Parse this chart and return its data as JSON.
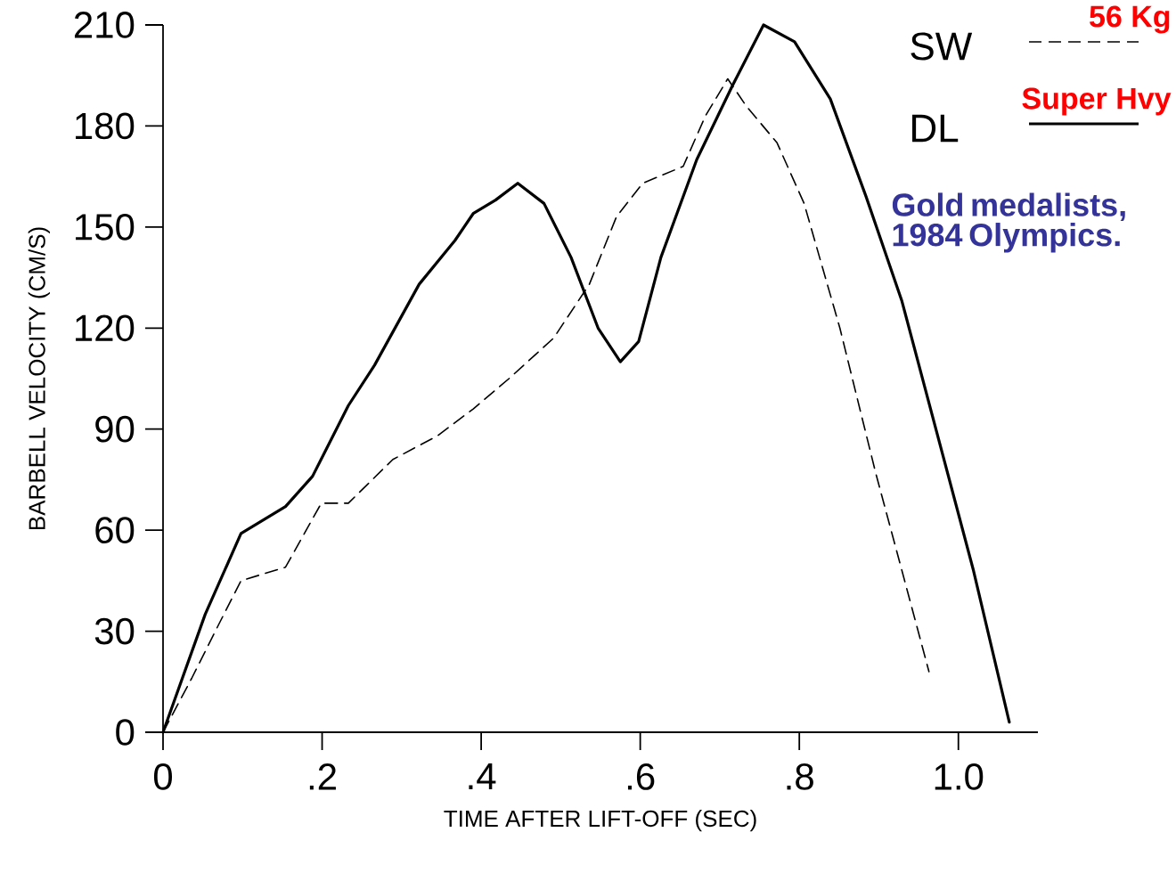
{
  "chart_data": {
    "type": "line",
    "xlabel": "TIME AFTER LIFT-OFF (SEC)",
    "ylabel": "BARBELL VELOCITY (CM/S)",
    "xlim": [
      0,
      1.1
    ],
    "ylim": [
      0,
      210
    ],
    "xticks": [
      0,
      {
        "value": 0.2,
        "label": ".2"
      },
      {
        "value": 0.4,
        "label": ".4"
      },
      {
        "value": 0.6,
        "label": ".6"
      },
      {
        "value": 0.8,
        "label": ".8"
      },
      {
        "value": 1.0,
        "label": "1.0"
      }
    ],
    "yticks": [
      0,
      30,
      60,
      90,
      120,
      150,
      180,
      210
    ],
    "legend": "top right",
    "grid": false,
    "marker": "none",
    "series": [
      {
        "name": "SW",
        "color": "#000000",
        "line_style": "dashed",
        "x": [
          0,
          0.036,
          0.07,
          0.098,
          0.154,
          0.199,
          0.233,
          0.289,
          0.345,
          0.39,
          0.435,
          0.491,
          0.536,
          0.57,
          0.603,
          0.654,
          0.682,
          0.71,
          0.733,
          0.772,
          0.806,
          0.851,
          0.896,
          0.929,
          0.963
        ],
        "values": [
          0,
          16,
          32,
          45,
          49,
          68,
          68,
          81,
          88,
          96,
          105,
          117,
          133,
          153,
          163,
          168,
          183,
          194,
          186,
          175,
          157,
          120,
          77,
          48,
          18
        ]
      },
      {
        "name": "DL",
        "color": "#000000",
        "line_style": "solid",
        "x": [
          0,
          0.053,
          0.098,
          0.154,
          0.188,
          0.233,
          0.266,
          0.322,
          0.367,
          0.39,
          0.418,
          0.446,
          0.479,
          0.513,
          0.547,
          0.575,
          0.598,
          0.626,
          0.671,
          0.716,
          0.755,
          0.794,
          0.839,
          0.884,
          0.929,
          0.974,
          1.019,
          1.064
        ],
        "values": [
          0,
          35,
          59,
          67,
          76,
          97,
          109,
          133,
          146,
          154,
          158,
          163,
          157,
          141,
          120,
          110,
          116,
          141,
          170,
          192,
          210,
          205,
          188,
          159,
          128,
          88,
          48,
          3
        ]
      }
    ],
    "annotations": [
      "56 Kg",
      "Super Hvy",
      "Gold medalists, 1984 Olympics."
    ]
  }
}
